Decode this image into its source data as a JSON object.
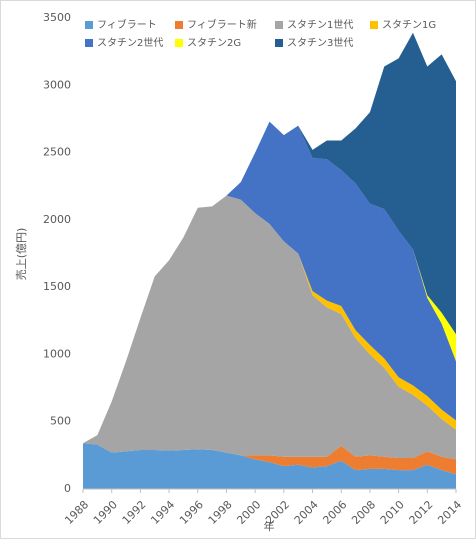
{
  "chart_data": {
    "type": "area",
    "stacked": true,
    "x_label": "年",
    "y_label": "売上(億円)",
    "x": [
      1988,
      1989,
      1990,
      1991,
      1992,
      1993,
      1994,
      1995,
      1996,
      1997,
      1998,
      1999,
      2000,
      2001,
      2002,
      2003,
      2004,
      2005,
      2006,
      2007,
      2008,
      2009,
      2010,
      2011,
      2012,
      2013,
      2014
    ],
    "xlim": [
      1988,
      2014
    ],
    "xticks": [
      1988,
      1990,
      1992,
      1994,
      1996,
      1998,
      2000,
      2002,
      2004,
      2006,
      2008,
      2010,
      2012,
      2014
    ],
    "ylim": [
      0,
      3500
    ],
    "yticks": [
      0,
      500,
      1000,
      1500,
      2000,
      2500,
      3000,
      3500
    ],
    "series": [
      {
        "name": "フィブラート",
        "color": "#5b9bd5",
        "values": [
          340,
          330,
          270,
          280,
          290,
          290,
          285,
          290,
          295,
          290,
          270,
          250,
          220,
          200,
          170,
          180,
          160,
          170,
          210,
          140,
          150,
          150,
          140,
          140,
          180,
          140,
          110
        ]
      },
      {
        "name": "フィブラート新",
        "color": "#ed7d31",
        "values": [
          0,
          0,
          0,
          0,
          0,
          0,
          0,
          0,
          0,
          0,
          0,
          0,
          30,
          50,
          70,
          60,
          80,
          70,
          110,
          100,
          100,
          90,
          90,
          90,
          100,
          100,
          110
        ]
      },
      {
        "name": "スタチン1世代",
        "color": "#a5a5a5",
        "values": [
          0,
          70,
          380,
          670,
          980,
          1290,
          1415,
          1580,
          1795,
          1810,
          1910,
          1900,
          1800,
          1720,
          1600,
          1510,
          1200,
          1110,
          980,
          880,
          750,
          660,
          530,
          470,
          340,
          280,
          220
        ]
      },
      {
        "name": "スタチン1G",
        "color": "#ffc000",
        "values": [
          0,
          0,
          0,
          0,
          0,
          0,
          0,
          0,
          0,
          0,
          0,
          0,
          0,
          0,
          0,
          0,
          30,
          50,
          60,
          60,
          70,
          70,
          70,
          70,
          70,
          70,
          70
        ]
      },
      {
        "name": "スタチン2世代",
        "color": "#4472c4",
        "values": [
          0,
          0,
          0,
          0,
          0,
          0,
          0,
          0,
          0,
          0,
          0,
          130,
          450,
          760,
          790,
          950,
          990,
          1050,
          1010,
          1090,
          1050,
          1110,
          1090,
          1010,
          730,
          640,
          440
        ]
      },
      {
        "name": "スタチン2G",
        "color": "#ffff00",
        "values": [
          0,
          0,
          0,
          0,
          0,
          0,
          0,
          0,
          0,
          0,
          0,
          0,
          0,
          0,
          0,
          0,
          0,
          0,
          0,
          0,
          0,
          0,
          0,
          0,
          20,
          80,
          200
        ]
      },
      {
        "name": "スタチン3世代",
        "color": "#255e91",
        "values": [
          0,
          0,
          0,
          0,
          0,
          0,
          0,
          0,
          0,
          0,
          0,
          0,
          0,
          0,
          0,
          0,
          60,
          140,
          220,
          410,
          680,
          1060,
          1280,
          1610,
          1700,
          1920,
          1880
        ]
      }
    ]
  }
}
